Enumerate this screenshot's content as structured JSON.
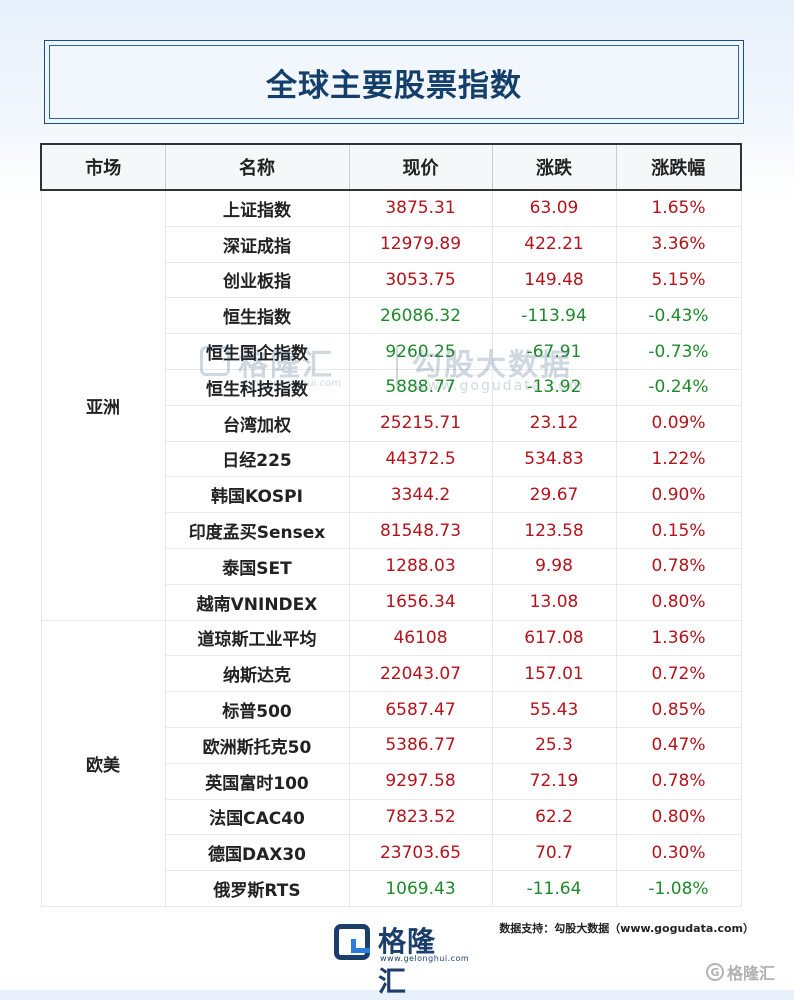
{
  "title": "全球主要股票指数",
  "table": {
    "headers": [
      "市场",
      "名称",
      "现价",
      "涨跌",
      "涨跌幅"
    ],
    "groups": [
      {
        "market": "亚洲",
        "rows": [
          {
            "name": "上证指数",
            "price": "3875.31",
            "change": "63.09",
            "pct": "1.65%"
          },
          {
            "name": "深证成指",
            "price": "12979.89",
            "change": "422.21",
            "pct": "3.36%"
          },
          {
            "name": "创业板指",
            "price": "3053.75",
            "change": "149.48",
            "pct": "5.15%"
          },
          {
            "name": "恒生指数",
            "price": "26086.32",
            "change": "-113.94",
            "pct": "-0.43%"
          },
          {
            "name": "恒生国企指数",
            "price": "9260.25",
            "change": "-67.91",
            "pct": "-0.73%"
          },
          {
            "name": "恒生科技指数",
            "price": "5888.77",
            "change": "-13.92",
            "pct": "-0.24%"
          },
          {
            "name": "台湾加权",
            "price": "25215.71",
            "change": "23.12",
            "pct": "0.09%"
          },
          {
            "name": "日经225",
            "price": "44372.5",
            "change": "534.83",
            "pct": "1.22%"
          },
          {
            "name": "韩国KOSPI",
            "price": "3344.2",
            "change": "29.67",
            "pct": "0.90%"
          },
          {
            "name": "印度孟买Sensex",
            "price": "81548.73",
            "change": "123.58",
            "pct": "0.15%"
          },
          {
            "name": "泰国SET",
            "price": "1288.03",
            "change": "9.98",
            "pct": "0.78%"
          },
          {
            "name": "越南VNINDEX",
            "price": "1656.34",
            "change": "13.08",
            "pct": "0.80%"
          }
        ]
      },
      {
        "market": "欧美",
        "rows": [
          {
            "name": "道琼斯工业平均",
            "price": "46108",
            "change": "617.08",
            "pct": "1.36%"
          },
          {
            "name": "纳斯达克",
            "price": "22043.07",
            "change": "157.01",
            "pct": "0.72%"
          },
          {
            "name": "标普500",
            "price": "6587.47",
            "change": "55.43",
            "pct": "0.85%"
          },
          {
            "name": "欧洲斯托克50",
            "price": "5386.77",
            "change": "25.3",
            "pct": "0.47%"
          },
          {
            "name": "英国富时100",
            "price": "9297.58",
            "change": "72.19",
            "pct": "0.78%"
          },
          {
            "name": "法国CAC40",
            "price": "7823.52",
            "change": "62.2",
            "pct": "0.80%"
          },
          {
            "name": "德国DAX30",
            "price": "23703.65",
            "change": "70.7",
            "pct": "0.30%"
          },
          {
            "name": "俄罗斯RTS",
            "price": "1069.43",
            "change": "-11.64",
            "pct": "-1.08%"
          }
        ]
      }
    ]
  },
  "watermark": {
    "brand_cn": "格隆汇",
    "brand_url": "www.gelonghui.com",
    "data_cn": "勾股大数据",
    "data_url": "www.gogudata.com"
  },
  "footer": {
    "logo_cn": "格隆汇",
    "logo_url": "www.gelonghui.com",
    "source": "数据支持：勾股大数据（www.gogudata.com）",
    "corner_icon": "G",
    "corner_text": "格隆汇"
  },
  "colors": {
    "up": "#b3131a",
    "down": "#1f8a2a",
    "asia_bg": "#d5def0",
    "euro_bg": "#fbf1d6",
    "title": "#153f6b"
  }
}
